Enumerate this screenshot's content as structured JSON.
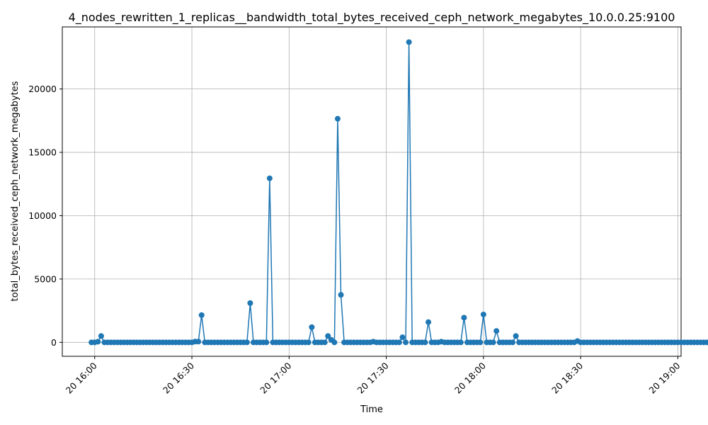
{
  "chart_data": {
    "type": "line",
    "title": "4_nodes_rewritten_1_replicas__bandwidth_total_bytes_received_ceph_network_megabytes_10.0.0.25:9100",
    "xlabel": "Time",
    "ylabel": "total_bytes_received_ceph_network_megabytes",
    "x_ticks": [
      "20 16:00",
      "20 16:30",
      "20 17:00",
      "20 17:30",
      "20 18:00",
      "20 18:30",
      "20 19:00"
    ],
    "y_ticks": [
      "0",
      "5000",
      "10000",
      "15000",
      "20000"
    ],
    "xlim": [
      "2024-01-20 15:50",
      "2024-01-20 19:01"
    ],
    "ylim": [
      -1100,
      24900
    ],
    "grid": true,
    "marker": "circle",
    "line_color": "#1f77b4",
    "series": [
      {
        "x_start": "2024-01-20 15:59",
        "x_step_minutes": 1,
        "values": [
          0,
          0,
          50,
          500,
          0,
          0,
          0,
          0,
          0,
          0,
          0,
          0,
          0,
          0,
          0,
          0,
          0,
          0,
          0,
          0,
          0,
          0,
          0,
          0,
          0,
          0,
          0,
          0,
          0,
          0,
          0,
          0,
          60,
          60,
          2150,
          0,
          0,
          0,
          0,
          0,
          0,
          0,
          0,
          0,
          0,
          0,
          0,
          0,
          0,
          3100,
          0,
          0,
          0,
          0,
          0,
          12950,
          0,
          0,
          0,
          0,
          0,
          0,
          0,
          0,
          0,
          0,
          0,
          0,
          1200,
          0,
          0,
          0,
          0,
          500,
          200,
          0,
          17650,
          3750,
          0,
          0,
          0,
          0,
          0,
          0,
          0,
          0,
          0,
          50,
          0,
          0,
          0,
          0,
          0,
          0,
          0,
          0,
          400,
          0,
          23700,
          0,
          0,
          0,
          0,
          0,
          1600,
          0,
          0,
          0,
          50,
          0,
          0,
          0,
          0,
          0,
          0,
          1950,
          0,
          0,
          0,
          0,
          0,
          2200,
          0,
          0,
          0,
          900,
          0,
          0,
          0,
          0,
          0,
          500,
          0,
          0,
          0,
          0,
          0,
          0,
          0,
          0,
          0,
          0,
          0,
          0,
          0,
          0,
          0,
          0,
          0,
          0,
          100,
          0,
          0,
          0,
          0,
          0,
          0,
          0,
          0,
          0,
          0,
          0,
          0,
          0,
          0,
          0,
          0,
          0,
          0,
          0,
          0,
          0,
          0,
          0,
          0,
          0,
          0,
          0,
          0,
          0,
          0,
          0,
          0,
          0,
          0,
          0,
          0,
          0,
          0,
          0,
          0,
          0,
          0,
          0,
          0,
          0,
          0,
          0,
          0,
          0,
          0,
          0,
          0,
          0,
          0,
          0,
          0,
          0
        ]
      }
    ]
  }
}
